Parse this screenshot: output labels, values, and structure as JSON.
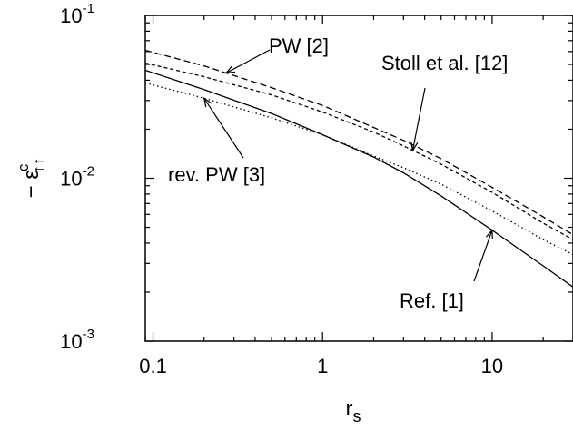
{
  "chart_data": {
    "type": "line",
    "title": "",
    "xlabel": "r",
    "xlabel_sub": "s",
    "ylabel_prefix": "− ε",
    "ylabel_sup": "c",
    "ylabel_sub": "↑↑",
    "xscale": "log",
    "yscale": "log",
    "xlim": [
      0.09,
      30
    ],
    "ylim": [
      0.001,
      0.1
    ],
    "xticks": [
      {
        "value": 0.1,
        "label": "0.1"
      },
      {
        "value": 1,
        "label": "1"
      },
      {
        "value": 10,
        "label": "10"
      }
    ],
    "yticks": [
      {
        "value": 0.001,
        "base": "10",
        "exp": "-3"
      },
      {
        "value": 0.01,
        "base": "10",
        "exp": "-2"
      },
      {
        "value": 0.1,
        "base": "10",
        "exp": "-1"
      }
    ],
    "grid": false,
    "series": [
      {
        "name": "Ref. [1]",
        "dash": "solid",
        "x": [
          0.09,
          0.2,
          0.5,
          1,
          2,
          3,
          5,
          10,
          20,
          30
        ],
        "y": [
          0.046,
          0.035,
          0.025,
          0.0185,
          0.0135,
          0.0108,
          0.0078,
          0.0048,
          0.0029,
          0.00215
        ]
      },
      {
        "name": "rev. PW [3]",
        "dash": "dotted",
        "x": [
          0.09,
          0.2,
          0.5,
          1,
          2,
          3,
          5,
          10,
          20,
          30
        ],
        "y": [
          0.0385,
          0.031,
          0.0235,
          0.0185,
          0.0137,
          0.0116,
          0.0092,
          0.0063,
          0.0042,
          0.0034
        ]
      },
      {
        "name": "Stoll et al. [12]",
        "dash": "short-dash",
        "x": [
          0.09,
          0.2,
          0.5,
          1,
          2,
          3,
          5,
          10,
          20,
          30
        ],
        "y": [
          0.051,
          0.042,
          0.0325,
          0.0255,
          0.0192,
          0.0158,
          0.0122,
          0.0082,
          0.0053,
          0.0042
        ]
      },
      {
        "name": "PW [2]",
        "dash": "long-dash",
        "x": [
          0.09,
          0.2,
          0.5,
          1,
          2,
          3,
          5,
          10,
          20,
          30
        ],
        "y": [
          0.061,
          0.049,
          0.036,
          0.028,
          0.0205,
          0.0171,
          0.0132,
          0.0088,
          0.0058,
          0.0045
        ]
      }
    ],
    "annotations": [
      {
        "text": "PW [2]",
        "series": "PW [2]"
      },
      {
        "text": "Stoll et al. [12]",
        "series": "Stoll et al. [12]"
      },
      {
        "text": "rev. PW [3]",
        "series": "rev. PW [3]"
      },
      {
        "text": "Ref. [1]",
        "series": "Ref. [1]"
      }
    ]
  }
}
